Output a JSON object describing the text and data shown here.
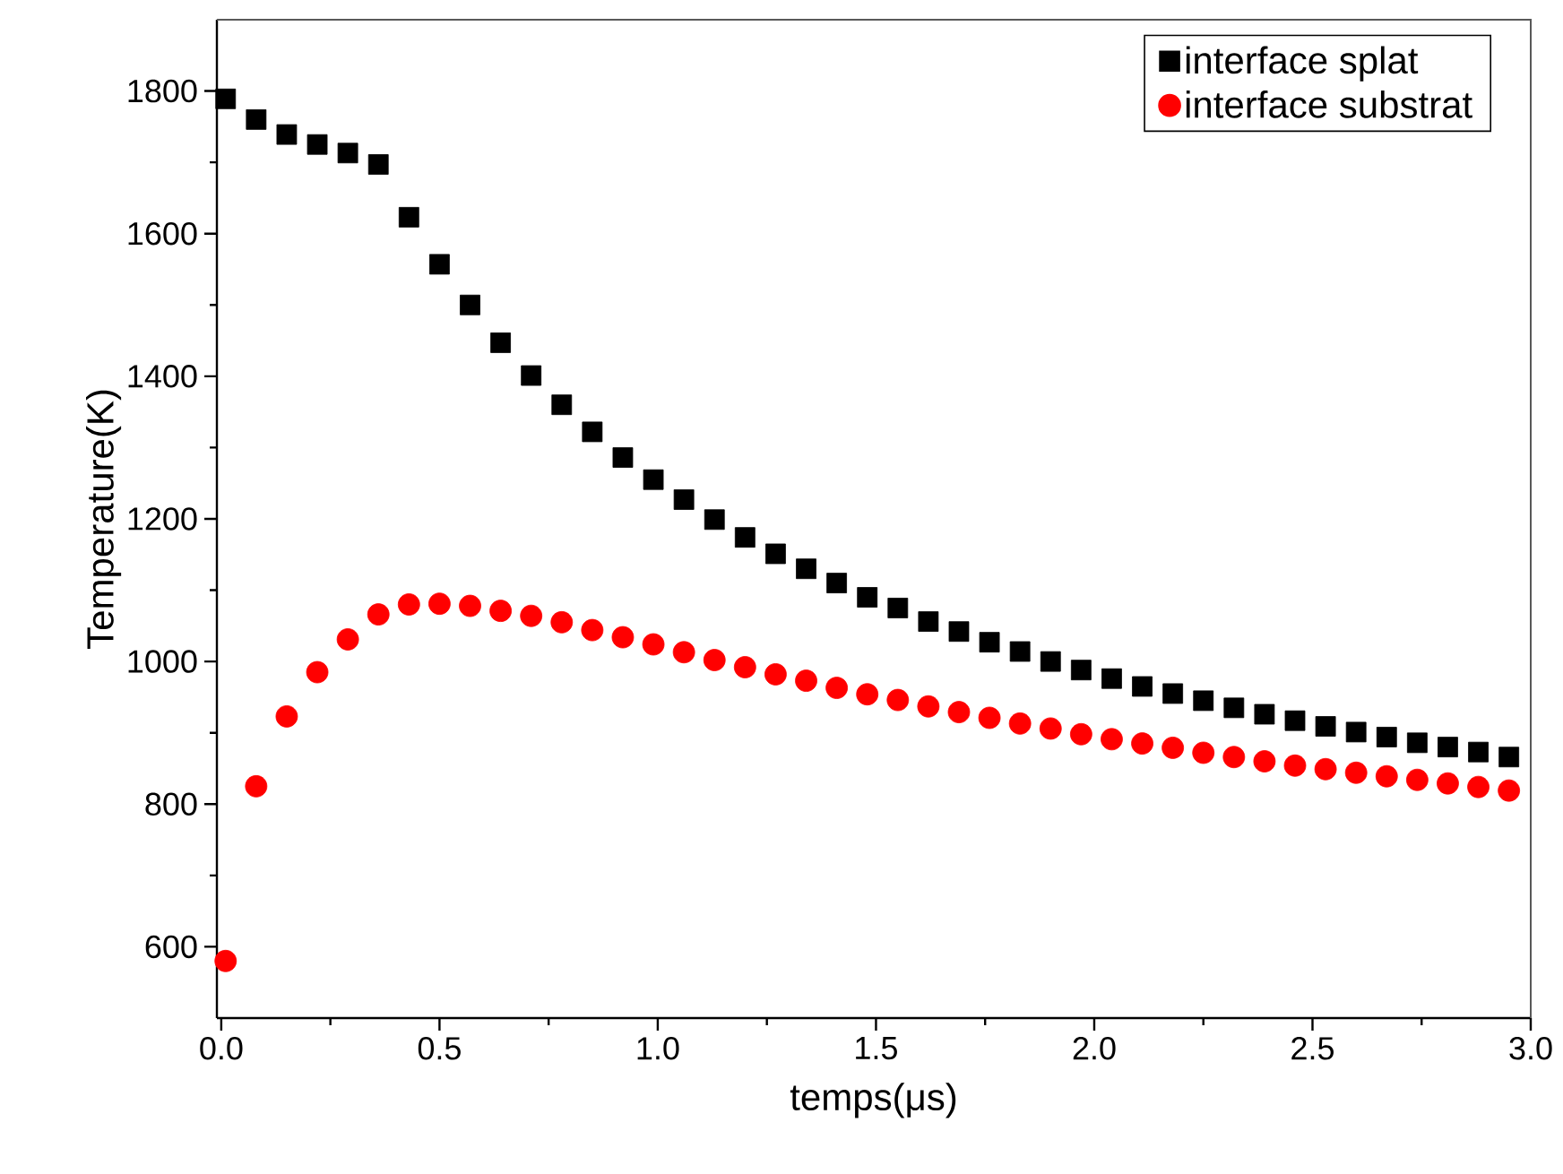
{
  "chart_data": {
    "type": "scatter",
    "xlabel": "temps(μs)",
    "ylabel": "Temperature(K)",
    "x": [
      0.01,
      0.08,
      0.15,
      0.22,
      0.29,
      0.36,
      0.43,
      0.5,
      0.57,
      0.64,
      0.71,
      0.78,
      0.85,
      0.92,
      0.99,
      1.06,
      1.13,
      1.2,
      1.27,
      1.34,
      1.41,
      1.48,
      1.55,
      1.62,
      1.69,
      1.76,
      1.83,
      1.9,
      1.97,
      2.04,
      2.11,
      2.18,
      2.25,
      2.32,
      2.39,
      2.46,
      2.53,
      2.6,
      2.67,
      2.74,
      2.81,
      2.88,
      2.95
    ],
    "series": [
      {
        "name": "interface splat",
        "color": "#000000",
        "marker": "square",
        "values": [
          1789,
          1760,
          1739,
          1725,
          1713,
          1697,
          1623,
          1557,
          1500,
          1447,
          1401,
          1360,
          1322,
          1286,
          1255,
          1227,
          1199,
          1174,
          1151,
          1130,
          1110,
          1090,
          1075,
          1056,
          1042,
          1027,
          1014,
          1000,
          988,
          976,
          965,
          955,
          945,
          935,
          926,
          917,
          909,
          901,
          894,
          886,
          880,
          873,
          866
        ]
      },
      {
        "name": "interface substrat",
        "color": "#ff0000",
        "marker": "circle",
        "values": [
          580,
          825,
          923,
          985,
          1031,
          1066,
          1080,
          1081,
          1078,
          1071,
          1064,
          1055,
          1044,
          1034,
          1024,
          1013,
          1002,
          992,
          982,
          973,
          963,
          954,
          946,
          937,
          929,
          921,
          913,
          906,
          898,
          891,
          885,
          879,
          872,
          866,
          860,
          854,
          849,
          844,
          839,
          834,
          829,
          824,
          819
        ]
      }
    ],
    "xlim": [
      -0.01,
      3.0
    ],
    "ylim": [
      500,
      1900
    ],
    "xticks": [
      {
        "value": 0,
        "label": "0.0"
      },
      0.5,
      {
        "value": 1,
        "label": "1.0"
      },
      1.5,
      {
        "value": 2,
        "label": "2.0"
      },
      2.5,
      {
        "value": 3,
        "label": "3.0"
      }
    ],
    "yticks": [
      600,
      800,
      1000,
      1200,
      1400,
      1600,
      1800
    ],
    "grid": false,
    "legend": "top right"
  }
}
